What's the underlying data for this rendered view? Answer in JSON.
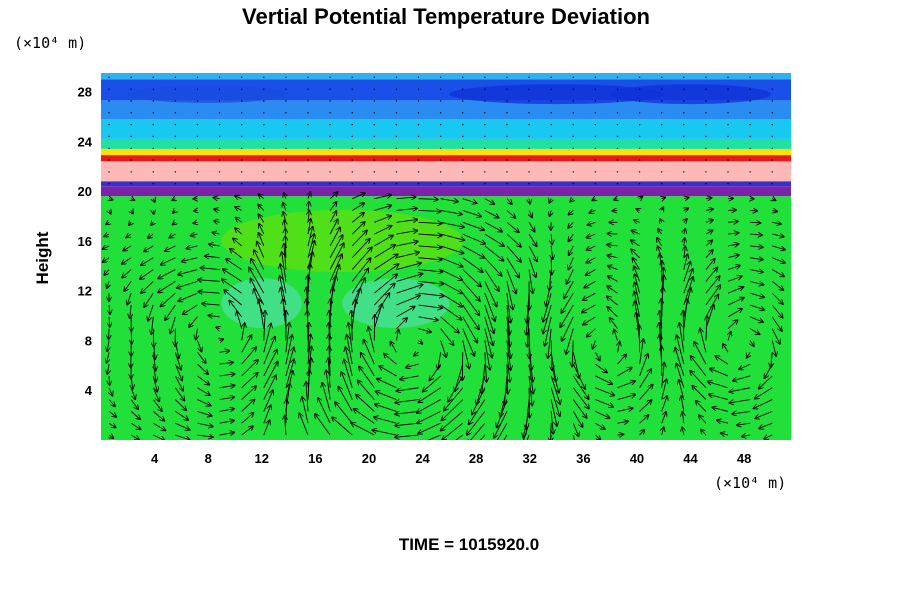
{
  "chart_data": {
    "type": "heatmap",
    "title": "Vertial Potential Temperature Deviation",
    "ylabel": "Height",
    "x_unit": "(×10⁴ m)",
    "y_unit": "(×10⁴ m)",
    "footer": "TIME = 1015920.0",
    "xlim": [
      0,
      51.5
    ],
    "ylim": [
      0,
      29.5
    ],
    "x_ticks": [
      4,
      8,
      12,
      16,
      20,
      24,
      28,
      32,
      36,
      40,
      44,
      48
    ],
    "y_ticks": [
      4,
      8,
      12,
      16,
      20,
      24,
      28
    ],
    "grid": false,
    "layers": [
      {
        "from": 0,
        "to": 19.6,
        "color": "#22e03a"
      },
      {
        "from": 19.6,
        "to": 20.4,
        "color": "#7a22a8"
      },
      {
        "from": 20.4,
        "to": 20.8,
        "color": "#3333cc"
      },
      {
        "from": 20.8,
        "to": 22.4,
        "color": "#ffb8b8"
      },
      {
        "from": 22.4,
        "to": 22.9,
        "color": "#e81818"
      },
      {
        "from": 22.9,
        "to": 23.4,
        "color": "#ffe000"
      },
      {
        "from": 23.4,
        "to": 24.2,
        "color": "#22e0a0"
      },
      {
        "from": 24.2,
        "to": 25.8,
        "color": "#18c8f0"
      },
      {
        "from": 25.8,
        "to": 27.3,
        "color": "#2a8cf0"
      },
      {
        "from": 27.3,
        "to": 29.0,
        "color": "#1a50e8"
      },
      {
        "from": 29.0,
        "to": 29.5,
        "color": "#30b0f0"
      }
    ],
    "blobs": [
      {
        "x": 18,
        "y": 16,
        "rx": 9,
        "ry": 2.5,
        "color": "#60e010"
      },
      {
        "x": 22,
        "y": 11,
        "rx": 4,
        "ry": 2,
        "color": "#4ee0a0"
      },
      {
        "x": 12,
        "y": 11,
        "rx": 3,
        "ry": 2,
        "color": "#4ee0a0"
      },
      {
        "x": 34,
        "y": 27.8,
        "rx": 8,
        "ry": 0.8,
        "color": "#1030d8"
      },
      {
        "x": 44,
        "y": 27.8,
        "rx": 6,
        "ry": 0.8,
        "color": "#1030d8"
      },
      {
        "x": 8,
        "y": 27.8,
        "rx": 6,
        "ry": 0.7,
        "color": "#1a4ce0"
      }
    ],
    "vector_field": {
      "note": "flow arrows, approximate",
      "cells": [
        {
          "cx": 10,
          "cy": 8,
          "r": 5,
          "sense": 1
        },
        {
          "cx": 23,
          "cy": 7.5,
          "r": 6.5,
          "sense": -1
        },
        {
          "cx": 37.5,
          "cy": 8,
          "r": 4.5,
          "sense": 1
        },
        {
          "cx": 47,
          "cy": 8,
          "r": 4.5,
          "sense": -1
        }
      ]
    }
  }
}
